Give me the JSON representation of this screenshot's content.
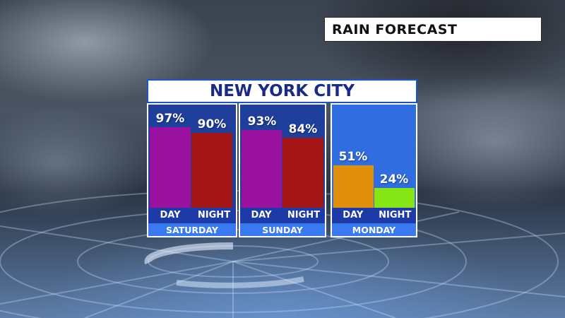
{
  "header": {
    "title": "RAIN FORECAST"
  },
  "chart_data": {
    "type": "bar",
    "title": "NEW YORK CITY",
    "ylim": [
      0,
      100
    ],
    "unit": "%",
    "groups": [
      {
        "day": "SATURDAY",
        "bars": [
          {
            "label": "DAY",
            "value": 97,
            "display": "97%",
            "color": "#9b119f"
          },
          {
            "label": "NIGHT",
            "value": 90,
            "display": "90%",
            "color": "#a41515"
          }
        ]
      },
      {
        "day": "SUNDAY",
        "bars": [
          {
            "label": "DAY",
            "value": 93,
            "display": "93%",
            "color": "#9b119f"
          },
          {
            "label": "NIGHT",
            "value": 84,
            "display": "84%",
            "color": "#a41515"
          }
        ]
      },
      {
        "day": "MONDAY",
        "bars": [
          {
            "label": "DAY",
            "value": 51,
            "display": "51%",
            "color": "#e0900c"
          },
          {
            "label": "NIGHT",
            "value": 24,
            "display": "24%",
            "color": "#86e615"
          }
        ]
      }
    ]
  }
}
